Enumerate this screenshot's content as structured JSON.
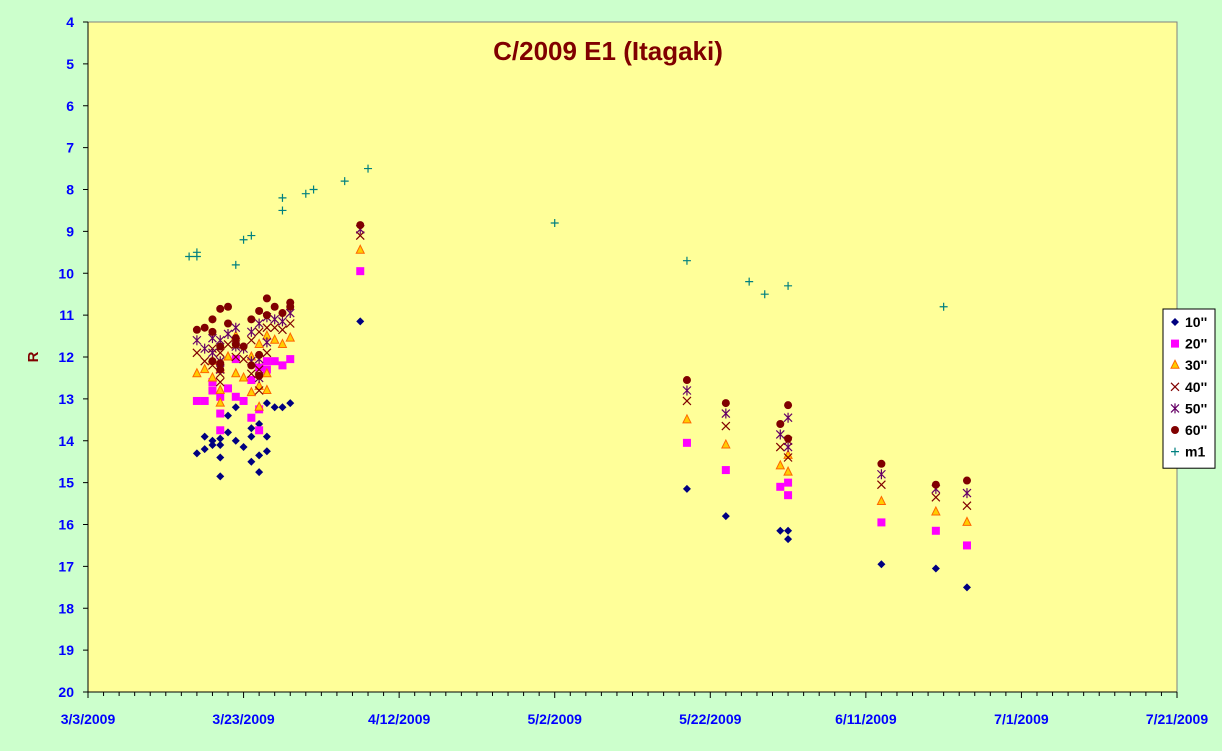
{
  "chart_data": {
    "type": "scatter",
    "title": "C/2009 E1 (Itagaki)",
    "ylabel": "R",
    "xlabel": "",
    "y_inverted": true,
    "ylim": [
      4,
      20
    ],
    "yticks": [
      4,
      5,
      6,
      7,
      8,
      9,
      10,
      11,
      12,
      13,
      14,
      15,
      16,
      17,
      18,
      19,
      20
    ],
    "xlim": [
      "2009-03-03",
      "2009-07-21"
    ],
    "xtick_labels": [
      "3/3/2009",
      "3/23/2009",
      "4/12/2009",
      "5/2/2009",
      "5/22/2009",
      "6/11/2009",
      "7/1/2009",
      "7/21/2009"
    ],
    "grid": false,
    "legend_position": "right",
    "background_color": "#ffff99",
    "series": [
      {
        "name": "10''",
        "marker": "diamond",
        "color": "#000080",
        "points": [
          [
            "2009-03-17",
            14.3
          ],
          [
            "2009-03-18",
            14.2
          ],
          [
            "2009-03-18",
            13.9
          ],
          [
            "2009-03-19",
            14.1
          ],
          [
            "2009-03-19",
            14.0
          ],
          [
            "2009-03-20",
            14.85
          ],
          [
            "2009-03-20",
            14.4
          ],
          [
            "2009-03-20",
            14.1
          ],
          [
            "2009-03-20",
            13.95
          ],
          [
            "2009-03-21",
            13.8
          ],
          [
            "2009-03-21",
            13.4
          ],
          [
            "2009-03-22",
            14.0
          ],
          [
            "2009-03-22",
            13.2
          ],
          [
            "2009-03-23",
            14.15
          ],
          [
            "2009-03-24",
            14.5
          ],
          [
            "2009-03-24",
            13.9
          ],
          [
            "2009-03-24",
            13.7
          ],
          [
            "2009-03-25",
            14.75
          ],
          [
            "2009-03-25",
            14.35
          ],
          [
            "2009-03-25",
            13.6
          ],
          [
            "2009-03-26",
            14.25
          ],
          [
            "2009-03-26",
            13.9
          ],
          [
            "2009-03-26",
            13.1
          ],
          [
            "2009-03-27",
            13.2
          ],
          [
            "2009-03-28",
            13.2
          ],
          [
            "2009-03-29",
            13.1
          ],
          [
            "2009-04-07",
            11.15
          ],
          [
            "2009-05-19",
            15.15
          ],
          [
            "2009-05-24",
            15.8
          ],
          [
            "2009-05-31",
            16.15
          ],
          [
            "2009-06-01",
            16.35
          ],
          [
            "2009-06-01",
            16.15
          ],
          [
            "2009-06-13",
            16.95
          ],
          [
            "2009-06-20",
            17.05
          ],
          [
            "2009-06-24",
            17.5
          ]
        ]
      },
      {
        "name": "20''",
        "marker": "square",
        "color": "#ff00ff",
        "points": [
          [
            "2009-03-17",
            13.05
          ],
          [
            "2009-03-18",
            13.05
          ],
          [
            "2009-03-19",
            12.8
          ],
          [
            "2009-03-19",
            12.6
          ],
          [
            "2009-03-20",
            13.75
          ],
          [
            "2009-03-20",
            13.35
          ],
          [
            "2009-03-20",
            12.95
          ],
          [
            "2009-03-21",
            12.75
          ],
          [
            "2009-03-22",
            12.95
          ],
          [
            "2009-03-22",
            12.05
          ],
          [
            "2009-03-23",
            13.05
          ],
          [
            "2009-03-24",
            13.45
          ],
          [
            "2009-03-24",
            12.55
          ],
          [
            "2009-03-25",
            13.75
          ],
          [
            "2009-03-25",
            13.25
          ],
          [
            "2009-03-25",
            12.25
          ],
          [
            "2009-03-26",
            12.3
          ],
          [
            "2009-03-26",
            12.1
          ],
          [
            "2009-03-27",
            12.1
          ],
          [
            "2009-03-28",
            12.2
          ],
          [
            "2009-03-29",
            12.05
          ],
          [
            "2009-04-07",
            9.95
          ],
          [
            "2009-05-19",
            14.05
          ],
          [
            "2009-05-24",
            14.7
          ],
          [
            "2009-05-31",
            15.1
          ],
          [
            "2009-06-01",
            15.3
          ],
          [
            "2009-06-01",
            15.0
          ],
          [
            "2009-06-13",
            15.95
          ],
          [
            "2009-06-20",
            16.15
          ],
          [
            "2009-06-24",
            16.5
          ]
        ]
      },
      {
        "name": "30''",
        "marker": "triangle",
        "color": "#ffcc00",
        "stroke": "#ff6600",
        "points": [
          [
            "2009-03-17",
            12.4
          ],
          [
            "2009-03-18",
            12.3
          ],
          [
            "2009-03-19",
            12.1
          ],
          [
            "2009-03-19",
            12.5
          ],
          [
            "2009-03-20",
            13.1
          ],
          [
            "2009-03-20",
            12.8
          ],
          [
            "2009-03-20",
            12.3
          ],
          [
            "2009-03-21",
            12.0
          ],
          [
            "2009-03-22",
            12.4
          ],
          [
            "2009-03-22",
            11.5
          ],
          [
            "2009-03-23",
            12.5
          ],
          [
            "2009-03-24",
            12.85
          ],
          [
            "2009-03-24",
            12.0
          ],
          [
            "2009-03-25",
            13.2
          ],
          [
            "2009-03-25",
            12.7
          ],
          [
            "2009-03-25",
            11.7
          ],
          [
            "2009-03-26",
            12.4
          ],
          [
            "2009-03-26",
            12.8
          ],
          [
            "2009-03-26",
            11.5
          ],
          [
            "2009-03-27",
            11.6
          ],
          [
            "2009-03-28",
            11.7
          ],
          [
            "2009-03-29",
            11.55
          ],
          [
            "2009-04-07",
            9.45
          ],
          [
            "2009-05-19",
            13.5
          ],
          [
            "2009-05-24",
            14.1
          ],
          [
            "2009-05-31",
            14.6
          ],
          [
            "2009-06-01",
            14.75
          ],
          [
            "2009-06-01",
            14.35
          ],
          [
            "2009-06-13",
            15.45
          ],
          [
            "2009-06-20",
            15.7
          ],
          [
            "2009-06-24",
            15.95
          ]
        ]
      },
      {
        "name": "40''",
        "marker": "x",
        "color": "#800000",
        "points": [
          [
            "2009-03-17",
            11.9
          ],
          [
            "2009-03-18",
            12.1
          ],
          [
            "2009-03-19",
            11.8
          ],
          [
            "2009-03-19",
            12.2
          ],
          [
            "2009-03-20",
            12.6
          ],
          [
            "2009-03-20",
            12.4
          ],
          [
            "2009-03-20",
            11.9
          ],
          [
            "2009-03-21",
            11.7
          ],
          [
            "2009-03-22",
            12.0
          ],
          [
            "2009-03-22",
            11.7
          ],
          [
            "2009-03-23",
            12.05
          ],
          [
            "2009-03-24",
            12.4
          ],
          [
            "2009-03-24",
            11.6
          ],
          [
            "2009-03-25",
            12.8
          ],
          [
            "2009-03-25",
            12.3
          ],
          [
            "2009-03-25",
            11.4
          ],
          [
            "2009-03-26",
            11.9
          ],
          [
            "2009-03-26",
            11.3
          ],
          [
            "2009-03-27",
            11.3
          ],
          [
            "2009-03-28",
            11.35
          ],
          [
            "2009-03-29",
            11.2
          ],
          [
            "2009-04-07",
            9.1
          ],
          [
            "2009-05-19",
            13.05
          ],
          [
            "2009-05-24",
            13.65
          ],
          [
            "2009-05-31",
            14.15
          ],
          [
            "2009-06-01",
            14.4
          ],
          [
            "2009-06-01",
            14.0
          ],
          [
            "2009-06-13",
            15.05
          ],
          [
            "2009-06-20",
            15.35
          ],
          [
            "2009-06-24",
            15.55
          ]
        ]
      },
      {
        "name": "50''",
        "marker": "star",
        "color": "#660066",
        "points": [
          [
            "2009-03-17",
            11.6
          ],
          [
            "2009-03-18",
            11.8
          ],
          [
            "2009-03-19",
            11.55
          ],
          [
            "2009-03-19",
            11.9
          ],
          [
            "2009-03-20",
            12.3
          ],
          [
            "2009-03-20",
            12.1
          ],
          [
            "2009-03-20",
            11.6
          ],
          [
            "2009-03-21",
            11.45
          ],
          [
            "2009-03-22",
            11.75
          ],
          [
            "2009-03-22",
            11.3
          ],
          [
            "2009-03-23",
            11.8
          ],
          [
            "2009-03-24",
            12.1
          ],
          [
            "2009-03-24",
            11.4
          ],
          [
            "2009-03-25",
            12.5
          ],
          [
            "2009-03-25",
            12.05
          ],
          [
            "2009-03-25",
            11.2
          ],
          [
            "2009-03-26",
            11.65
          ],
          [
            "2009-03-26",
            11.05
          ],
          [
            "2009-03-27",
            11.1
          ],
          [
            "2009-03-28",
            11.15
          ],
          [
            "2009-03-29",
            10.95
          ],
          [
            "2009-04-07",
            8.95
          ],
          [
            "2009-05-19",
            12.8
          ],
          [
            "2009-05-24",
            13.35
          ],
          [
            "2009-05-31",
            13.85
          ],
          [
            "2009-06-01",
            14.15
          ],
          [
            "2009-06-01",
            13.45
          ],
          [
            "2009-06-13",
            14.8
          ],
          [
            "2009-06-20",
            15.15
          ],
          [
            "2009-06-24",
            15.25
          ]
        ]
      },
      {
        "name": "60''",
        "marker": "circle",
        "color": "#800000",
        "points": [
          [
            "2009-03-17",
            11.35
          ],
          [
            "2009-03-18",
            11.3
          ],
          [
            "2009-03-19",
            11.1
          ],
          [
            "2009-03-19",
            11.4
          ],
          [
            "2009-03-19",
            12.1
          ],
          [
            "2009-03-20",
            12.3
          ],
          [
            "2009-03-20",
            12.15
          ],
          [
            "2009-03-20",
            11.75
          ],
          [
            "2009-03-20",
            10.85
          ],
          [
            "2009-03-21",
            11.2
          ],
          [
            "2009-03-21",
            10.8
          ],
          [
            "2009-03-22",
            11.55
          ],
          [
            "2009-03-22",
            11.7
          ],
          [
            "2009-03-23",
            11.75
          ],
          [
            "2009-03-24",
            12.2
          ],
          [
            "2009-03-24",
            11.1
          ],
          [
            "2009-03-25",
            12.45
          ],
          [
            "2009-03-25",
            11.95
          ],
          [
            "2009-03-25",
            10.9
          ],
          [
            "2009-03-26",
            11.0
          ],
          [
            "2009-03-26",
            10.6
          ],
          [
            "2009-03-27",
            10.8
          ],
          [
            "2009-03-28",
            10.95
          ],
          [
            "2009-03-29",
            10.7
          ],
          [
            "2009-03-29",
            10.8
          ],
          [
            "2009-04-07",
            8.85
          ],
          [
            "2009-05-19",
            12.55
          ],
          [
            "2009-05-24",
            13.1
          ],
          [
            "2009-05-31",
            13.6
          ],
          [
            "2009-06-01",
            13.95
          ],
          [
            "2009-06-01",
            13.15
          ],
          [
            "2009-06-13",
            14.55
          ],
          [
            "2009-06-20",
            15.05
          ],
          [
            "2009-06-24",
            14.95
          ]
        ]
      },
      {
        "name": "m1",
        "marker": "plus",
        "color": "#008080",
        "points": [
          [
            "2009-03-16",
            9.6
          ],
          [
            "2009-03-17",
            9.6
          ],
          [
            "2009-03-17",
            9.5
          ],
          [
            "2009-03-22",
            9.8
          ],
          [
            "2009-03-23",
            9.2
          ],
          [
            "2009-03-24",
            9.1
          ],
          [
            "2009-03-28",
            8.5
          ],
          [
            "2009-03-28",
            8.2
          ],
          [
            "2009-03-31",
            8.1
          ],
          [
            "2009-04-01",
            8.0
          ],
          [
            "2009-04-05",
            7.8
          ],
          [
            "2009-04-08",
            7.5
          ],
          [
            "2009-05-02",
            8.8
          ],
          [
            "2009-05-19",
            9.7
          ],
          [
            "2009-05-27",
            10.2
          ],
          [
            "2009-05-29",
            10.5
          ],
          [
            "2009-06-01",
            10.3
          ],
          [
            "2009-06-21",
            10.8
          ]
        ]
      }
    ]
  }
}
